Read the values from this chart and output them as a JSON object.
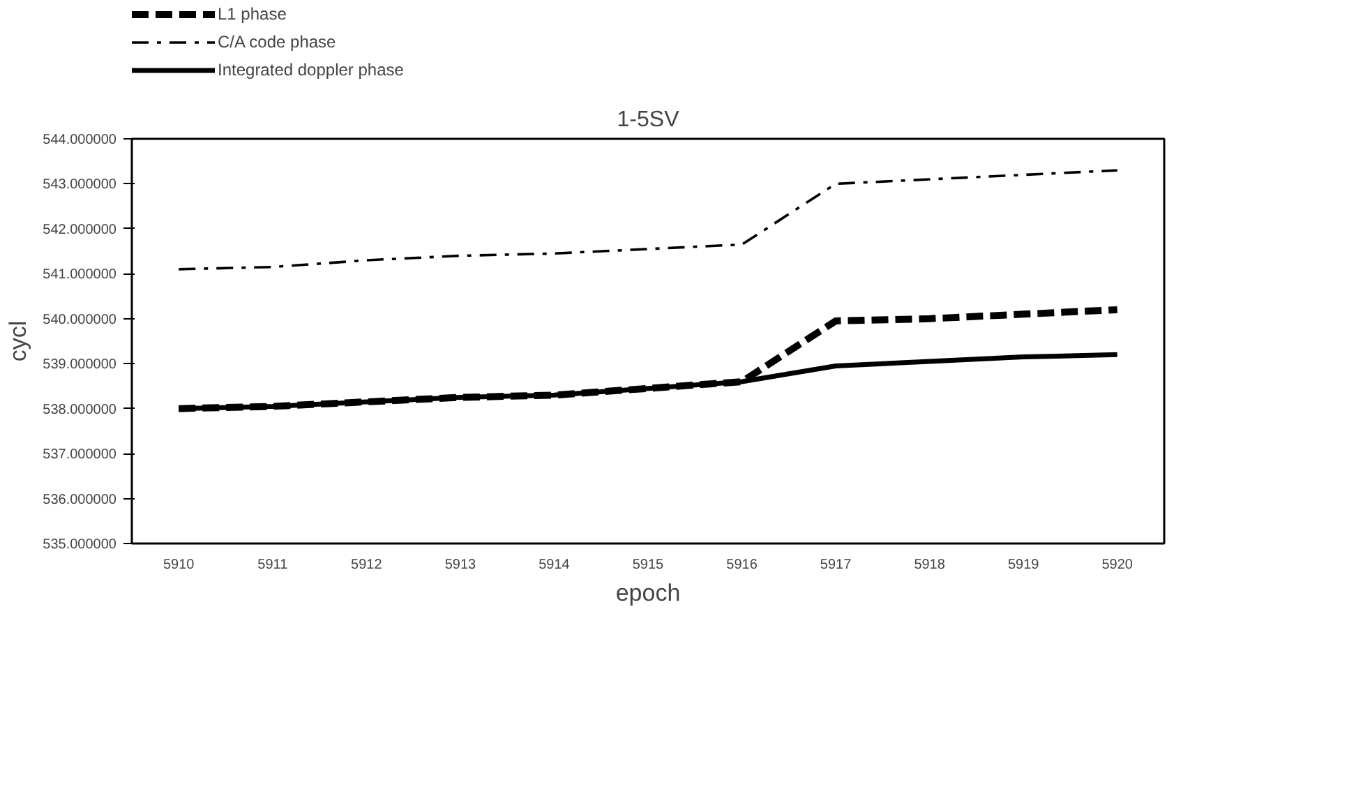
{
  "chart_data": {
    "type": "line",
    "title": "1-5SV",
    "xlabel": "epoch",
    "ylabel": "cycl",
    "x": [
      5910,
      5911,
      5912,
      5913,
      5914,
      5915,
      5916,
      5917,
      5918,
      5919,
      5920
    ],
    "series": [
      {
        "name": "L1 phase",
        "color": "#000000",
        "line_style": "dashed",
        "values": [
          538.0,
          538.05,
          538.15,
          538.25,
          538.3,
          538.45,
          538.6,
          539.95,
          540.0,
          540.1,
          540.2
        ]
      },
      {
        "name": "C/A code phase",
        "color": "#000000",
        "line_style": "dashdot",
        "values": [
          541.1,
          541.15,
          541.3,
          541.4,
          541.45,
          541.55,
          541.65,
          543.0,
          543.1,
          543.2,
          543.3
        ]
      },
      {
        "name": "Integrated doppler phase",
        "color": "#000000",
        "line_style": "solid",
        "values": [
          538.0,
          538.05,
          538.15,
          538.25,
          538.3,
          538.45,
          538.6,
          538.95,
          539.05,
          539.15,
          539.2
        ]
      }
    ],
    "xlim": [
      5909.5,
      5920.5
    ],
    "xticks": [
      5910,
      5911,
      5912,
      5913,
      5914,
      5915,
      5916,
      5917,
      5918,
      5919,
      5920
    ],
    "ylim": [
      535,
      544
    ],
    "yticks": [
      {
        "value": 535,
        "label": "535.000000"
      },
      {
        "value": 536,
        "label": "536.000000"
      },
      {
        "value": 537,
        "label": "537.000000"
      },
      {
        "value": 538,
        "label": "538.000000"
      },
      {
        "value": 539,
        "label": "539.000000"
      },
      {
        "value": 540,
        "label": "540.000000"
      },
      {
        "value": 541,
        "label": "541.000000"
      },
      {
        "value": 542,
        "label": "542.000000"
      },
      {
        "value": 543,
        "label": "543.000000"
      },
      {
        "value": 544,
        "label": "544.000000"
      }
    ],
    "grid": false,
    "legend": "top left",
    "marker": "none"
  }
}
